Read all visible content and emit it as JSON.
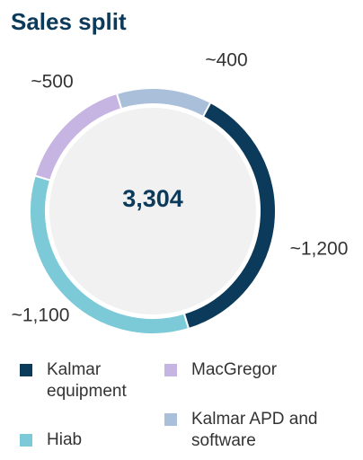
{
  "chart_data": {
    "type": "donut",
    "title": "Sales split",
    "center_label": "3,304",
    "categories": [
      "Kalmar equipment",
      "Hiab",
      "MacGregor",
      "Kalmar APD and software"
    ],
    "values": [
      1200,
      1100,
      500,
      400
    ],
    "value_labels": [
      "~1,200",
      "~1,100",
      "~500",
      "~400"
    ],
    "colors": [
      "#0b3a5a",
      "#7ccad8",
      "#c6b4e2",
      "#a9bfda"
    ]
  }
}
